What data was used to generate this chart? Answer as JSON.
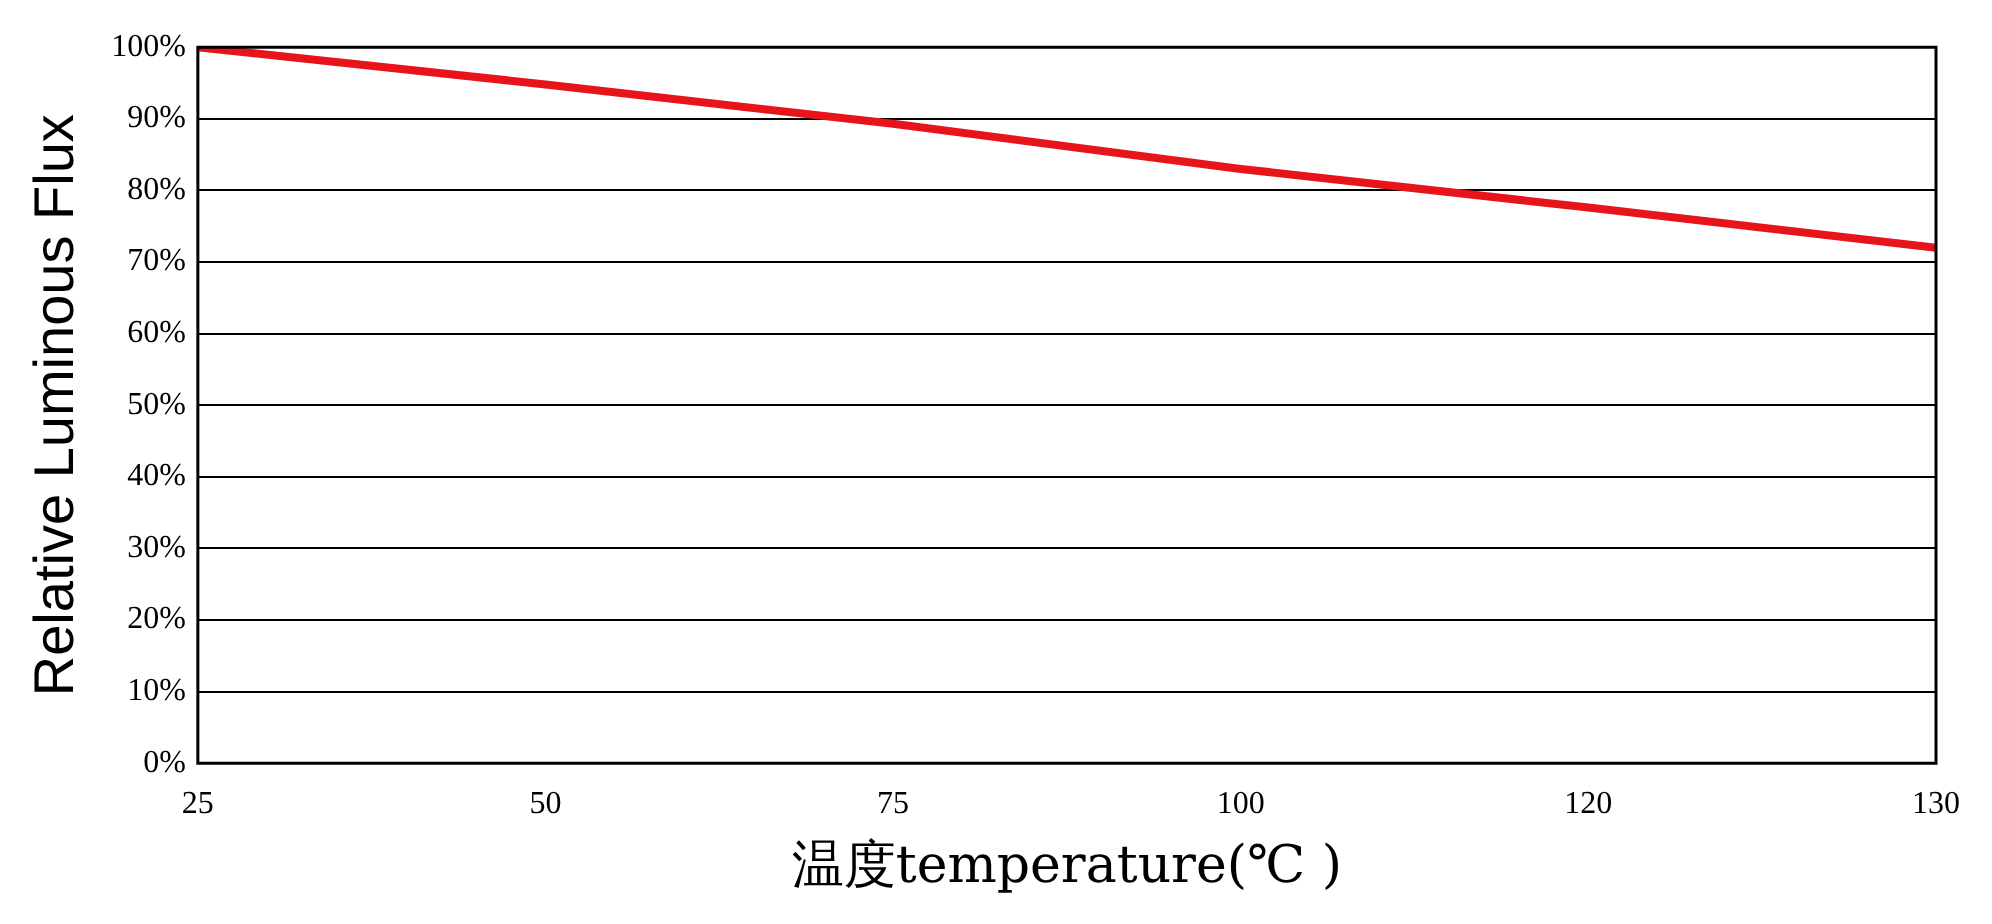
{
  "chart_data": {
    "type": "line",
    "xlabel": "温度temperature(℃ )",
    "ylabel": "Relative Luminous Flux",
    "categories": [
      "25",
      "50",
      "75",
      "100",
      "120",
      "130"
    ],
    "series": [
      {
        "color": "#e8141b",
        "values": [
          100,
          94.8,
          89.3,
          83,
          77.6,
          72
        ]
      }
    ],
    "ylim": [
      0,
      100
    ],
    "yticks": [
      {
        "value": 0,
        "label": "0%"
      },
      {
        "value": 10,
        "label": "10%"
      },
      {
        "value": 20,
        "label": "20%"
      },
      {
        "value": 30,
        "label": "30%"
      },
      {
        "value": 40,
        "label": "40%"
      },
      {
        "value": 50,
        "label": "50%"
      },
      {
        "value": 60,
        "label": "60%"
      },
      {
        "value": 70,
        "label": "70%"
      },
      {
        "value": 80,
        "label": "80%"
      },
      {
        "value": 90,
        "label": "90%"
      },
      {
        "value": 100,
        "label": "100%"
      }
    ],
    "grid": "y",
    "legend": false,
    "marker": "none",
    "line_style": "solid"
  }
}
